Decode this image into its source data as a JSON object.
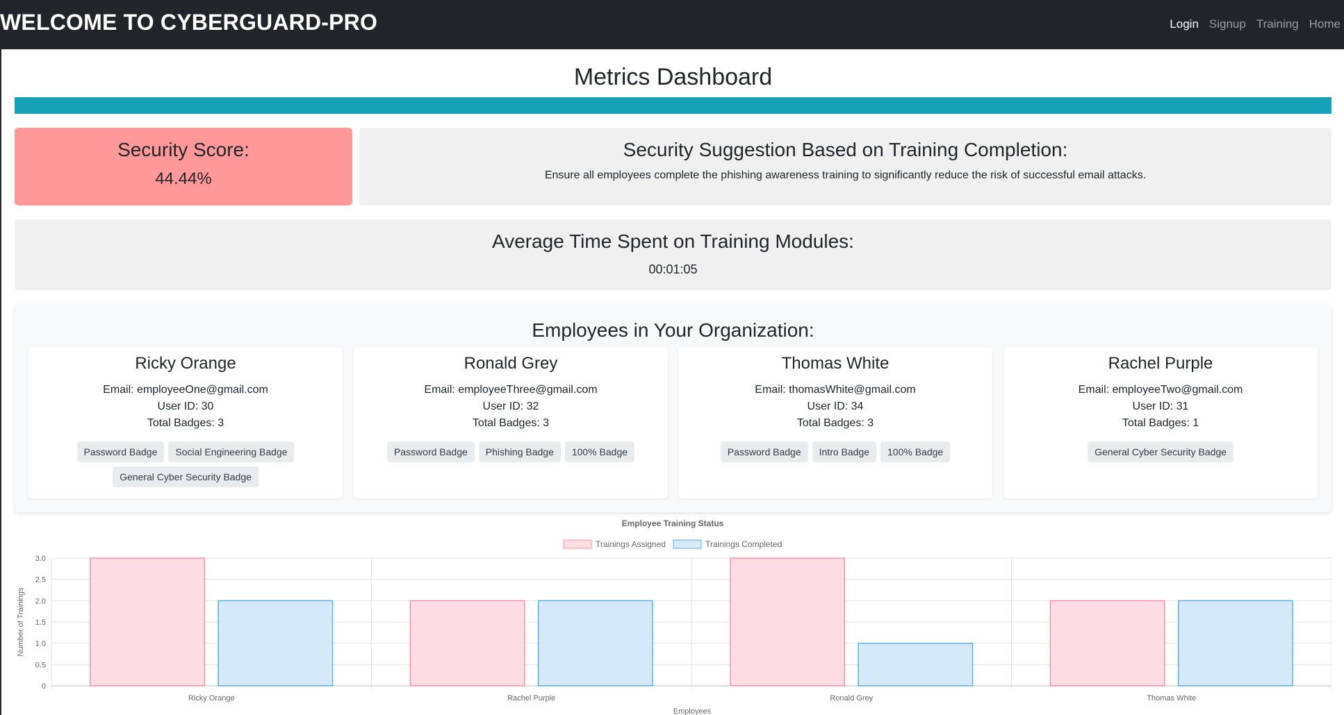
{
  "navbar": {
    "brand": "WELCOME TO CYBERGUARD-PRO",
    "links": [
      "Login",
      "Signup",
      "Training",
      "Home"
    ]
  },
  "page": {
    "title": "Metrics Dashboard"
  },
  "security_score": {
    "heading": "Security Score:",
    "value": "44.44%",
    "color": "#ff9999"
  },
  "suggestion": {
    "heading": "Security Suggestion Based on Training Completion:",
    "text": "Ensure all employees complete the phishing awareness training to significantly reduce the risk of successful email attacks."
  },
  "avg_time": {
    "heading": "Average Time Spent on Training Modules:",
    "value": "00:01:05"
  },
  "employees": {
    "heading": "Employees in Your Organization:",
    "list": [
      {
        "name": "Ricky Orange",
        "email": "Email: employeeOne@gmail.com",
        "user_id": "User ID: 30",
        "total_badges": "Total Badges: 3",
        "badges": [
          "Password Badge",
          "Social Engineering Badge",
          "General Cyber Security Badge"
        ]
      },
      {
        "name": "Ronald Grey",
        "email": "Email: employeeThree@gmail.com",
        "user_id": "User ID: 32",
        "total_badges": "Total Badges: 3",
        "badges": [
          "Password Badge",
          "Phishing Badge",
          "100% Badge"
        ]
      },
      {
        "name": "Thomas White",
        "email": "Email: thomasWhite@gmail.com",
        "user_id": "User ID: 34",
        "total_badges": "Total Badges: 3",
        "badges": [
          "Password Badge",
          "Intro Badge",
          "100% Badge"
        ]
      },
      {
        "name": "Rachel Purple",
        "email": "Email: employeeTwo@gmail.com",
        "user_id": "User ID: 31",
        "total_badges": "Total Badges: 1",
        "badges": [
          "General Cyber Security Badge"
        ]
      }
    ]
  },
  "colors": {
    "navbar": "#212529",
    "progress": "#17a2b8",
    "assigned_fill": "#ffdde4",
    "assigned_stroke": "#ff8fa6",
    "completed_fill": "#d6e9f8",
    "completed_stroke": "#5bb0e6"
  },
  "chart_data": {
    "type": "bar",
    "title": "Employee Training Status",
    "xlabel": "Employees",
    "ylabel": "Number of Trainings",
    "categories": [
      "Ricky Orange",
      "Rachel Purple",
      "Ronald Grey",
      "Thomas White"
    ],
    "series": [
      {
        "name": "Trainings Assigned",
        "values": [
          3,
          2,
          3,
          2
        ]
      },
      {
        "name": "Trainings Completed",
        "values": [
          2,
          2,
          1,
          2
        ]
      }
    ],
    "ylim": [
      0,
      3
    ],
    "yticks": [
      "0",
      "0.5",
      "1.0",
      "1.5",
      "2.0",
      "2.5",
      "3.0"
    ],
    "grid": true,
    "legend": "top"
  }
}
